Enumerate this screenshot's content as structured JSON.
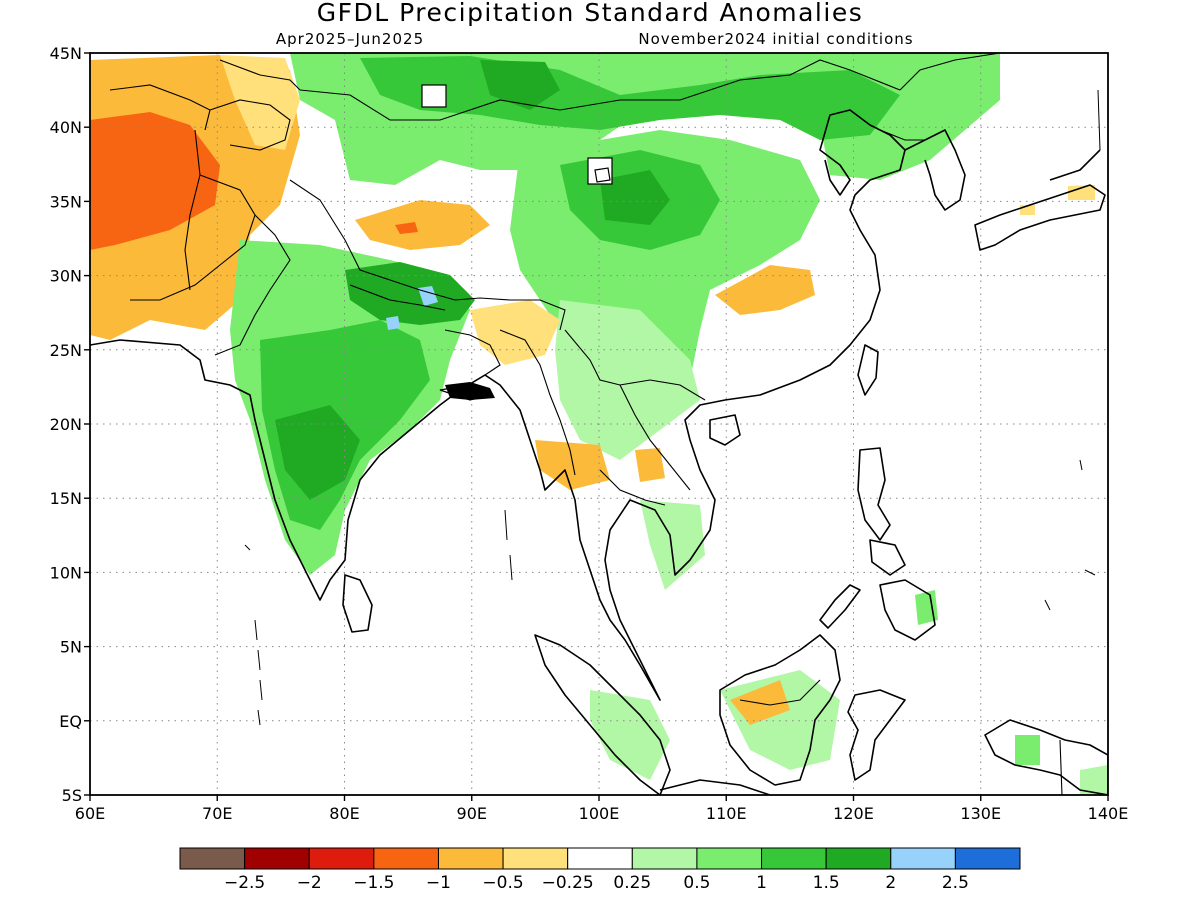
{
  "title": "GFDL Precipitation Standard Anomalies",
  "period": "Apr2025–Jun2025",
  "initial_conditions": "November2024 initial conditions",
  "lat_labels": [
    "45N",
    "40N",
    "35N",
    "30N",
    "25N",
    "20N",
    "15N",
    "10N",
    "5N",
    "EQ",
    "5S"
  ],
  "lon_labels": [
    "60E",
    "70E",
    "80E",
    "90E",
    "100E",
    "110E",
    "120E",
    "130E",
    "140E"
  ],
  "colorbar": {
    "colors": [
      "#7a5a4a",
      "#a00000",
      "#dd1c0e",
      "#f86512",
      "#fcba3b",
      "#ffe07a",
      "#ffffff",
      "#b2f7a6",
      "#7aed6e",
      "#36c838",
      "#20aa24",
      "#96d2fa",
      "#1e6ed9"
    ],
    "labels": [
      "−2.5",
      "−2",
      "−1.5",
      "−1",
      "−0.5",
      "−0.25",
      "0.25",
      "0.5",
      "1",
      "1.5",
      "2",
      "2.5"
    ]
  },
  "map_extent": {
    "lon_min": 60,
    "lon_max": 140,
    "lat_min": -5,
    "lat_max": 45
  },
  "grid": "dotted",
  "anomaly_regions": [
    {
      "name": "mongolia-north-china",
      "level": "1"
    },
    {
      "name": "tibet-central-china",
      "level": "1.5"
    },
    {
      "name": "india",
      "level": "1.5"
    },
    {
      "name": "nepal-himalaya",
      "level": "2"
    },
    {
      "name": "iran-afghanistan",
      "level": "-1"
    },
    {
      "name": "tarim-tibet-dry",
      "level": "-0.5"
    },
    {
      "name": "south-china-dry",
      "level": "-0.5"
    },
    {
      "name": "borneo-dry",
      "level": "-0.5"
    }
  ]
}
